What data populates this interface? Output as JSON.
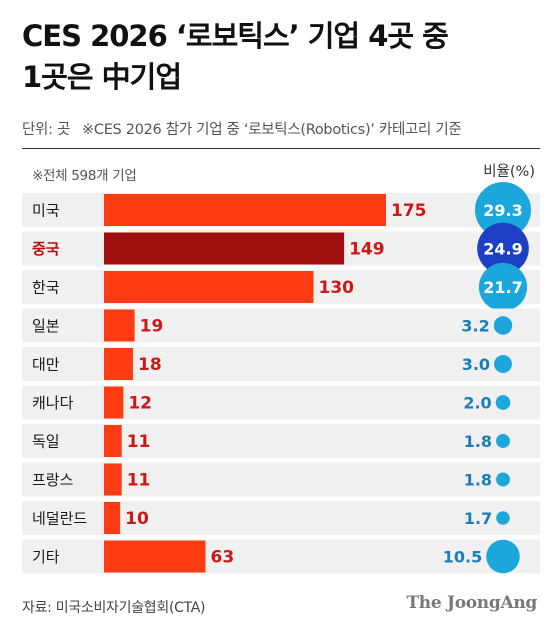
{
  "title": {
    "line1": "CES 2026 ‘로보틱스’ 기업 4곳 중",
    "line2": "1곳은 中기업"
  },
  "subtitle": {
    "unit": "단위: 곳",
    "description": "※CES 2026 참가 기업 중 ‘로보틱스(Robotics)’ 카테고리 기준"
  },
  "note": "※전체 598개 기업",
  "ratio_header": "비율(%)",
  "source": "자료: 미국소비자기술협회(CTA)",
  "brand": "The JoongAng",
  "colors": {
    "bar": "#ff3b14",
    "bar_highlight": "#a00f0f",
    "value_text": "#cc1818",
    "highlight_label": "#b01010",
    "bubble_light": "#1ba7dc",
    "bubble_dark": "#1d3fc4",
    "ratio_text": "#1a7fb8",
    "row_background": "#f0f0f0"
  },
  "chart_data": {
    "type": "bar",
    "categories": [
      "미국",
      "중국",
      "한국",
      "일본",
      "대만",
      "캐나다",
      "독일",
      "프랑스",
      "네덜란드",
      "기타"
    ],
    "values": [
      175,
      149,
      130,
      19,
      18,
      12,
      11,
      11,
      10,
      63
    ],
    "ratios": [
      29.3,
      24.9,
      21.7,
      3.2,
      3.0,
      2.0,
      1.8,
      1.8,
      1.7,
      10.5
    ],
    "ratio_labels": [
      "29.3",
      "24.9",
      "21.7",
      "3.2",
      "3.0",
      "2.0",
      "1.8",
      "1.8",
      "1.7",
      "10.5"
    ],
    "highlight": "중국",
    "xlim": [
      0,
      175
    ],
    "grid": false,
    "legend": "none"
  }
}
